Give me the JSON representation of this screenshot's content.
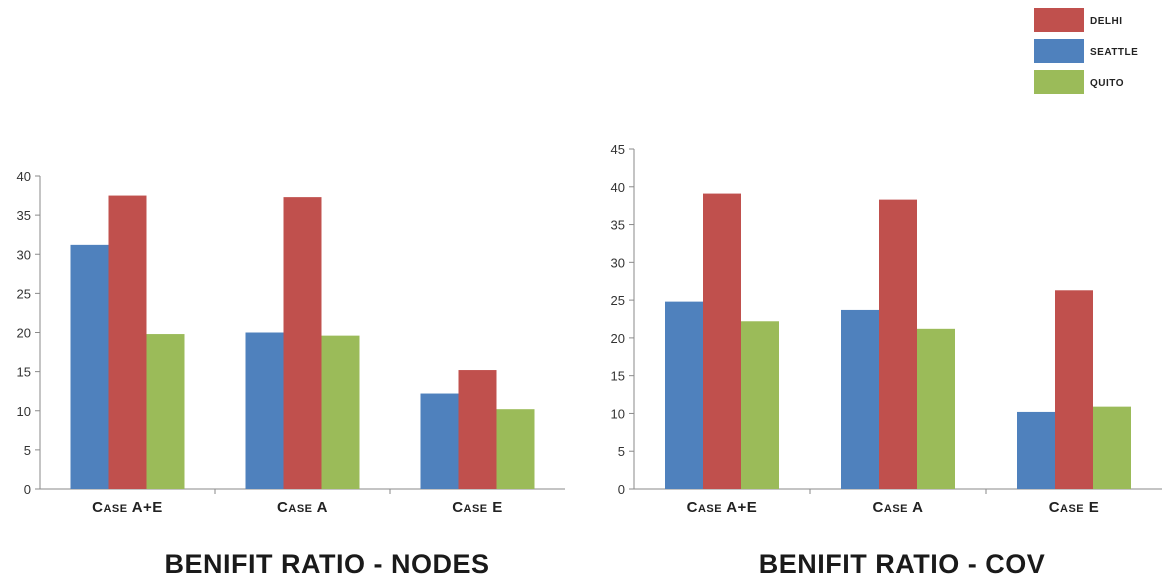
{
  "legend": {
    "entries": [
      {
        "name": "DELHI",
        "color": "#c0504d"
      },
      {
        "name": "SEATTLE",
        "color": "#4f81bd"
      },
      {
        "name": "QUITO",
        "color": "#9bbb59"
      }
    ],
    "placement": "top-right"
  },
  "chart_data": [
    {
      "type": "bar",
      "title": "BENIFIT RATIO - NODES",
      "categories": [
        "Case A+E",
        "Case A",
        "Case E"
      ],
      "ylim": [
        0,
        40
      ],
      "yticks": [
        0,
        5,
        10,
        15,
        20,
        25,
        30,
        35,
        40
      ],
      "series_order": [
        "SEATTLE",
        "DELHI",
        "QUITO"
      ],
      "series": [
        {
          "name": "SEATTLE",
          "color": "#4f81bd",
          "values": [
            31.2,
            20.0,
            12.2
          ]
        },
        {
          "name": "DELHI",
          "color": "#c0504d",
          "values": [
            37.5,
            37.3,
            15.2
          ]
        },
        {
          "name": "QUITO",
          "color": "#9bbb59",
          "values": [
            19.8,
            19.6,
            10.2
          ]
        }
      ],
      "grid": false
    },
    {
      "type": "bar",
      "title": "BENIFIT RATIO - COV",
      "categories": [
        "Case A+E",
        "Case A",
        "Case E"
      ],
      "ylim": [
        0,
        45
      ],
      "yticks": [
        0,
        5,
        10,
        15,
        20,
        25,
        30,
        35,
        40,
        45
      ],
      "series_order": [
        "SEATTLE",
        "DELHI",
        "QUITO"
      ],
      "series": [
        {
          "name": "SEATTLE",
          "color": "#4f81bd",
          "values": [
            24.8,
            23.7,
            10.2
          ]
        },
        {
          "name": "DELHI",
          "color": "#c0504d",
          "values": [
            39.1,
            38.3,
            26.3
          ]
        },
        {
          "name": "QUITO",
          "color": "#9bbb59",
          "values": [
            22.2,
            21.2,
            10.9
          ]
        }
      ],
      "grid": false
    }
  ]
}
